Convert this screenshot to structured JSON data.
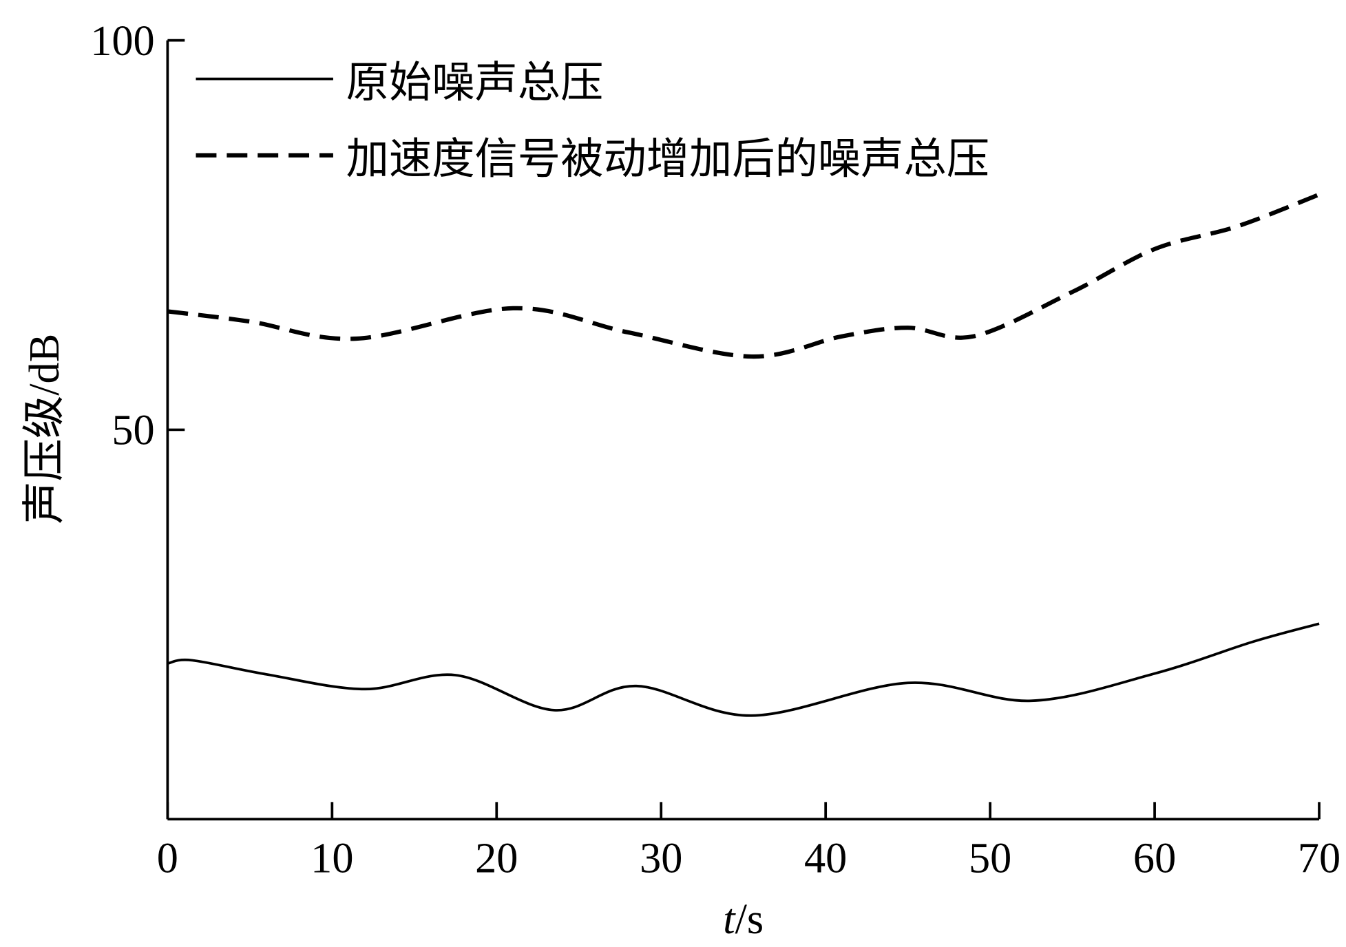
{
  "chart_data": {
    "type": "line",
    "xlabel_italic": "t",
    "xlabel_unit": "/s",
    "ylabel": "声压级/dB",
    "xlim": [
      0,
      70
    ],
    "ylim": [
      0,
      100
    ],
    "xticks": [
      "0",
      "10",
      "20",
      "30",
      "40",
      "50",
      "60",
      "70"
    ],
    "yticks": [
      "50",
      "100"
    ],
    "grid": false,
    "legend_position": "top-left",
    "series": [
      {
        "name": "原始噪声总压",
        "style": "solid",
        "color": "#000000",
        "x": [
          0,
          1.5,
          6,
          12,
          17.5,
          23.5,
          28.5,
          35.5,
          45,
          52.5,
          60,
          66,
          70
        ],
        "y": [
          20.0,
          20.4,
          18.6,
          16.7,
          18.5,
          14.0,
          17.1,
          13.3,
          17.5,
          15.2,
          18.7,
          22.8,
          25.1
        ]
      },
      {
        "name": "加速度信号被动增加后的噪声总压",
        "style": "dashed",
        "color": "#000000",
        "x": [
          0,
          5,
          11.5,
          21,
          28,
          35.5,
          41,
          45,
          49,
          55,
          60,
          65,
          70
        ],
        "y": [
          65.2,
          63.9,
          61.7,
          65.6,
          62.5,
          59.4,
          62.0,
          63.1,
          62.0,
          67.7,
          73.2,
          76.1,
          80.2
        ]
      }
    ]
  }
}
